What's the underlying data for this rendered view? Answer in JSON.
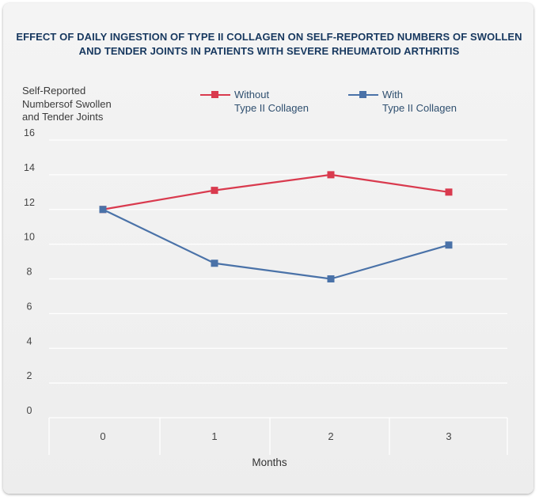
{
  "chart_data": {
    "type": "line",
    "title": "EFFECT OF DAILY INGESTION OF TYPE II COLLAGEN ON SELF-REPORTED NUMBERS OF SWOLLEN AND TENDER JOINTS IN PATIENTS WITH SEVERE RHEUMATOID ARTHRITIS",
    "ylabel": "Self-Reported\nNumbersof Swollen\nand Tender Joints",
    "xlabel": "Months",
    "x": [
      0,
      1,
      2,
      3
    ],
    "x_tick_labels": [
      "0",
      "1",
      "2",
      "3"
    ],
    "y_ticks": [
      0,
      2,
      4,
      6,
      8,
      10,
      12,
      14,
      16
    ],
    "ylim": [
      0,
      16
    ],
    "grid": true,
    "legend_position": "top",
    "series": [
      {
        "name": "Without\nType II Collagen",
        "values": [
          12,
          13.1,
          14,
          13
        ],
        "color": "#d93a4e"
      },
      {
        "name": "With\nType II Collagen",
        "values": [
          12,
          8.9,
          8,
          9.95
        ],
        "color": "#4a72a8"
      }
    ]
  },
  "colors": {
    "title": "#17385f",
    "grid": "#ffffff",
    "tick_text": "#444444"
  }
}
